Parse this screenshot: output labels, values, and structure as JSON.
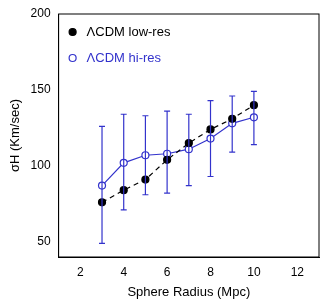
{
  "chart_data": {
    "type": "line",
    "x_label": "Sphere Radius (Mpc)",
    "y_label": "σH (Km/sec)",
    "x": [
      3,
      4,
      5,
      6,
      7,
      8,
      9,
      10
    ],
    "series": [
      {
        "name": "ΛCDM low-res",
        "color": "#000000",
        "marker": "circle",
        "line_style": "dashed",
        "values": [
          76,
          84,
          91,
          104,
          115,
          124,
          131,
          140
        ]
      },
      {
        "name": "ΛCDM hi-res",
        "color": "#3333cc",
        "marker": "open_circle",
        "line_style": "solid",
        "values": [
          87,
          102,
          107,
          108,
          111,
          118,
          128,
          132
        ],
        "error_low": [
          49,
          71,
          81,
          82,
          87,
          93,
          109,
          114
        ],
        "error_high": [
          126,
          134,
          133,
          136,
          134,
          143,
          146,
          149
        ]
      }
    ],
    "xlim": [
      1,
      13
    ],
    "xticks": [
      2,
      4,
      6,
      8,
      10,
      12
    ],
    "ylim": [
      40,
      200
    ],
    "yticks": [
      50,
      100,
      150,
      200
    ],
    "grid": false,
    "legend": "top-left"
  }
}
